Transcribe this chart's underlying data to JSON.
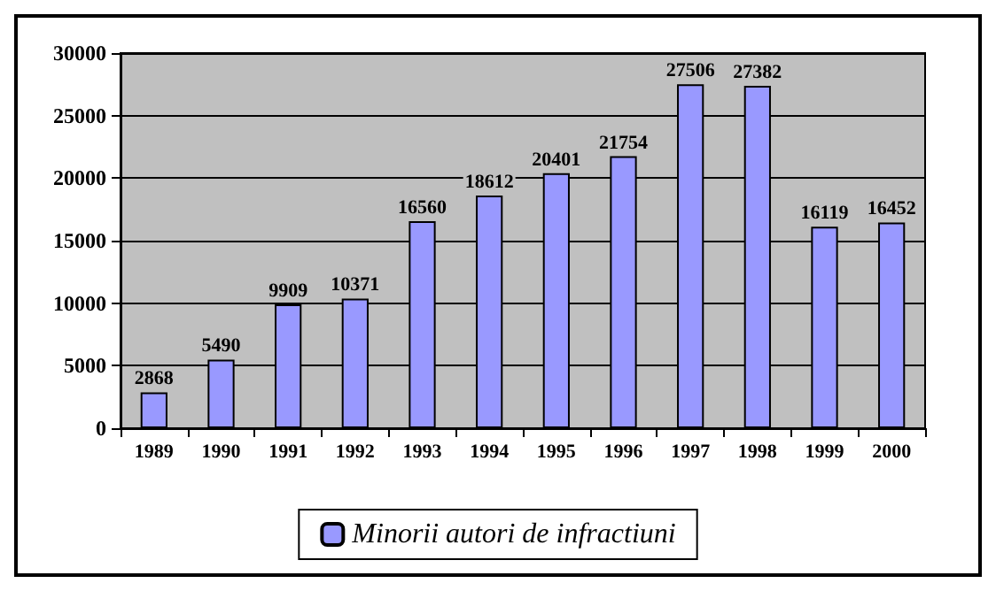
{
  "chart_data": {
    "type": "bar",
    "categories": [
      "1989",
      "1990",
      "1991",
      "1992",
      "1993",
      "1994",
      "1995",
      "1996",
      "1997",
      "1998",
      "1999",
      "2000"
    ],
    "series": [
      {
        "name": "Minorii autori de infractiuni",
        "color": "#9999ff",
        "values": [
          2868,
          5490,
          9909,
          10371,
          16560,
          18612,
          20401,
          21754,
          27506,
          27382,
          16119,
          16452
        ]
      }
    ],
    "ylim": [
      0,
      30000
    ],
    "yticks": [
      0,
      5000,
      10000,
      15000,
      20000,
      25000,
      30000
    ],
    "grid": "y",
    "legend": "bottom",
    "data_labels": true
  }
}
